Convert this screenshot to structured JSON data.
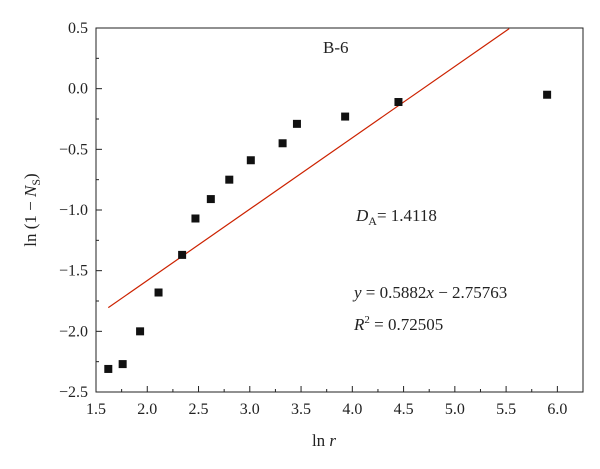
{
  "chart_data": {
    "type": "scatter",
    "title": "B-6",
    "xlabel": "ln r",
    "ylabel": "ln (1 − N_S)",
    "xlim": [
      1.5,
      6.25
    ],
    "ylim": [
      -2.5,
      0.5
    ],
    "xticks": [
      1.5,
      2.0,
      2.5,
      3.0,
      3.5,
      4.0,
      4.5,
      5.0,
      5.5,
      6.0
    ],
    "yticks": [
      -2.5,
      -2.0,
      -1.5,
      -1.0,
      -0.5,
      0.0,
      0.5
    ],
    "x_tick_labels": [
      "1.5",
      "2.0",
      "2.5",
      "3.0",
      "3.5",
      "4.0",
      "4.5",
      "5.0",
      "5.5",
      "6.0"
    ],
    "y_tick_labels": [
      "−2.5",
      "−2.0",
      "−1.5",
      "−1.0",
      "−0.5",
      "0.0",
      "0.5"
    ],
    "series": [
      {
        "marker": "square",
        "color": "#111111",
        "x": [
          1.62,
          1.76,
          1.93,
          2.11,
          2.34,
          2.47,
          2.62,
          2.8,
          3.01,
          3.32,
          3.46,
          3.93,
          4.45,
          5.9
        ],
        "y": [
          -2.31,
          -2.27,
          -2.0,
          -1.68,
          -1.37,
          -1.07,
          -0.91,
          -0.75,
          -0.59,
          -0.45,
          -0.29,
          -0.23,
          -0.11,
          -0.05
        ]
      }
    ],
    "fit_line": {
      "color": "#cc2200",
      "slope": 0.5882,
      "intercept": -2.75763,
      "x_range": [
        1.62,
        5.53
      ]
    },
    "annotations": {
      "label_1": "B-6",
      "da_label": "D",
      "da_sub": "A",
      "da_value": "= 1.4118",
      "eq_y": "y",
      "eq_mid": " = 0.5882",
      "eq_x": "x",
      "eq_rest": " − 2.75763",
      "r2_label": "R",
      "r2_sup": "2",
      "r2_value": " = 0.72505"
    },
    "axis_title_parts": {
      "x_main": "ln ",
      "x_var": "r",
      "y_prefix": "ln (1 − ",
      "y_var": "N",
      "y_sub": "S",
      "y_suffix": ")"
    }
  }
}
